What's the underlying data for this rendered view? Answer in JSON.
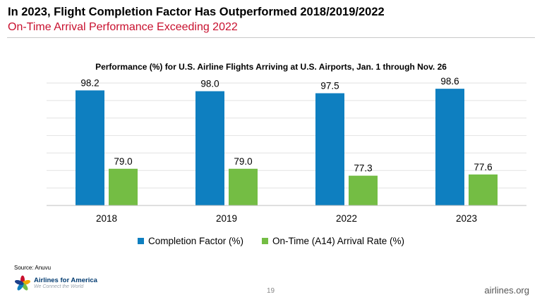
{
  "slide": {
    "title": "In 2023, Flight Completion Factor Has Outperformed 2018/2019/2022",
    "subtitle": "On-Time Arrival Performance Exceeding 2022",
    "source": "Source: Anuvu",
    "page_number": "19",
    "website": "airlines.org",
    "brand_name": "Airlines for America",
    "brand_tagline": "We Connect the World"
  },
  "colors": {
    "completion": "#0e7fc0",
    "ontime": "#74bd44",
    "accent_red": "#c8102e",
    "gridline": "#e2e2e2"
  },
  "chart_data": {
    "type": "bar",
    "title": "Performance (%) for U.S. Airline Flights Arriving at U.S. Airports, Jan. 1 through Nov. 26",
    "categories": [
      "2018",
      "2019",
      "2022",
      "2023"
    ],
    "series": [
      {
        "name": "Completion Factor (%)",
        "values": [
          98.2,
          98.0,
          97.5,
          98.6
        ],
        "labels": [
          "98.2",
          "98.0",
          "97.5",
          "98.6"
        ]
      },
      {
        "name": "On-Time (A14) Arrival Rate (%)",
        "values": [
          79.0,
          79.0,
          77.3,
          77.6
        ],
        "labels": [
          "79.0",
          "79.0",
          "77.3",
          "77.6"
        ]
      }
    ],
    "ylim": [
      70,
      100
    ],
    "grid": true,
    "legend_position": "bottom",
    "xlabel": "",
    "ylabel": ""
  }
}
